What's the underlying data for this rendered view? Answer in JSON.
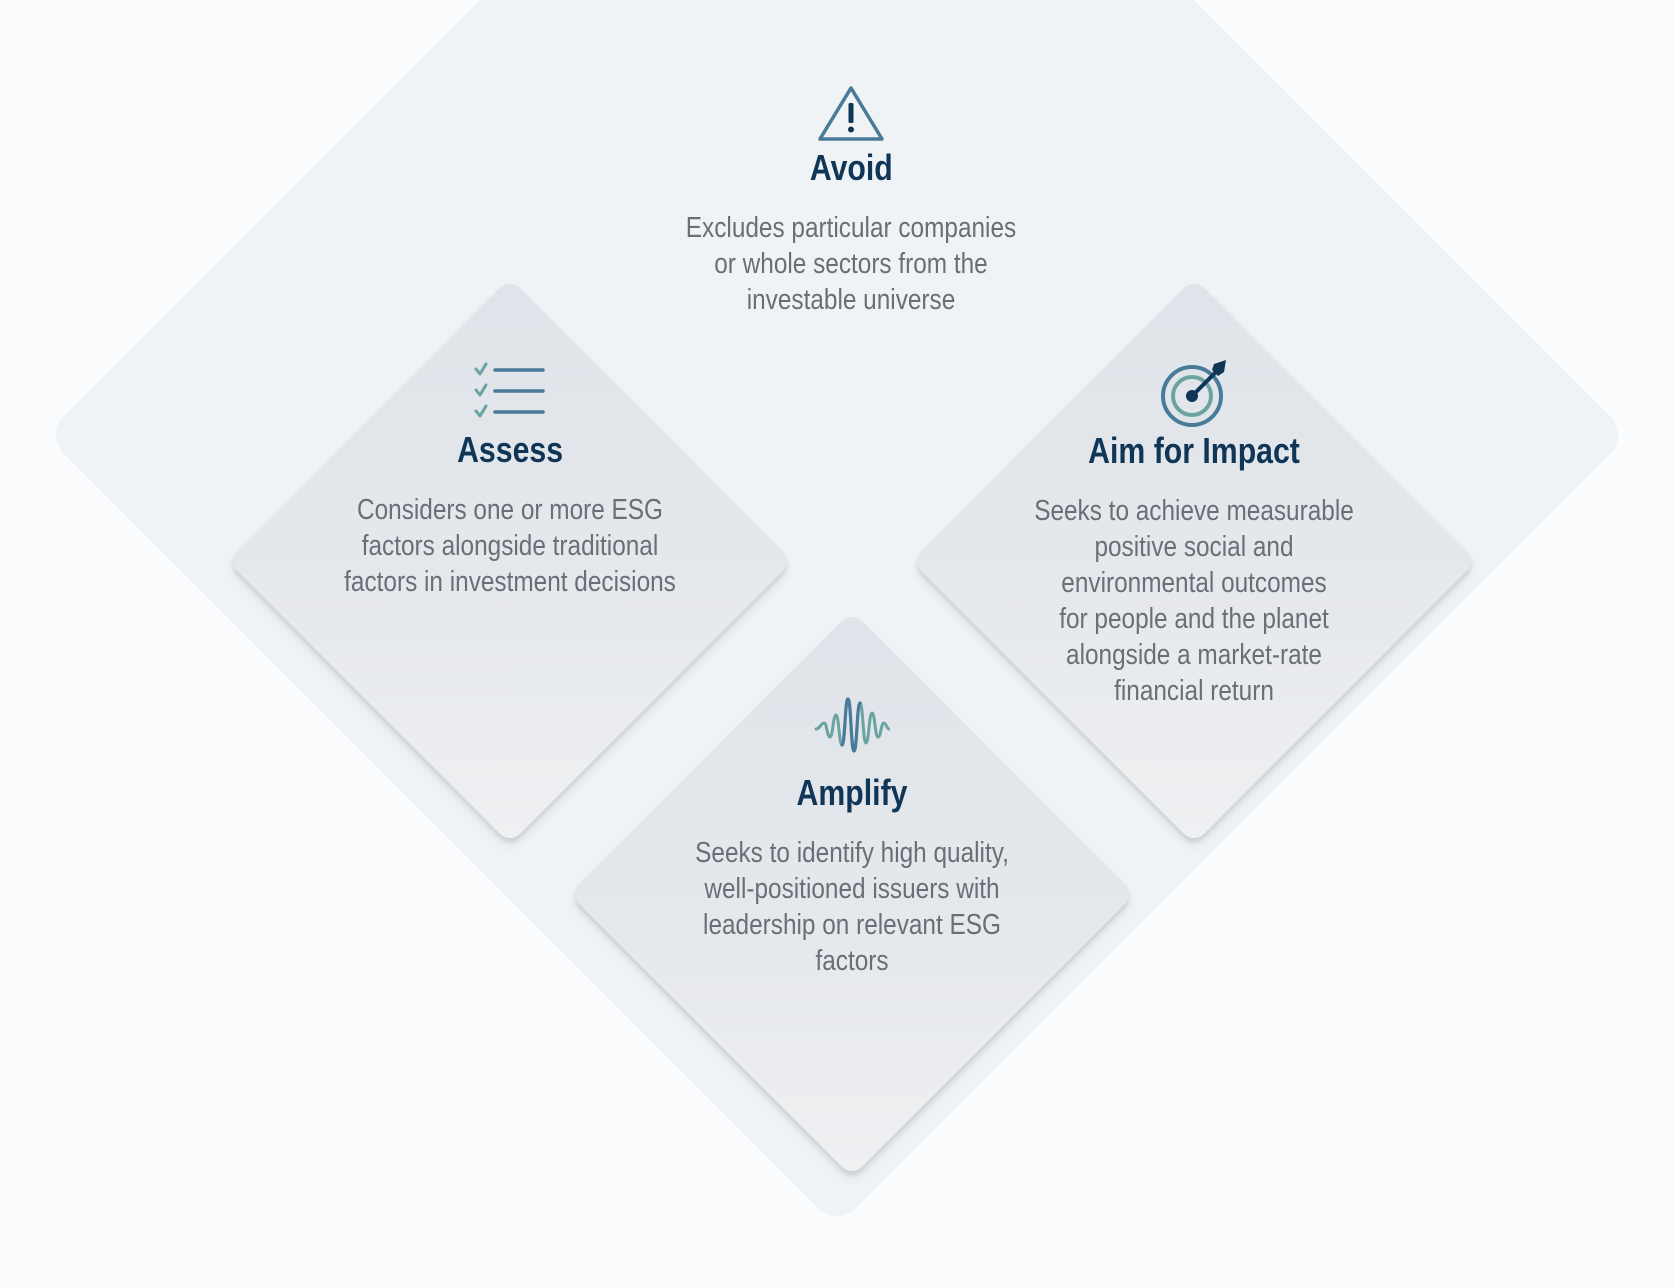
{
  "items": [
    {
      "id": "avoid",
      "icon": "warning-triangle-icon",
      "title": "Avoid",
      "description": "Excludes particular companies\nor whole sectors from the\ninvestable universe"
    },
    {
      "id": "assess",
      "icon": "checklist-icon",
      "title": "Assess",
      "description": "Considers one or more ESG\nfactors alongside traditional\nfactors in investment decisions"
    },
    {
      "id": "impact",
      "icon": "target-dart-icon",
      "title": "Aim for Impact",
      "description": "Seeks to achieve measurable\npositive social and\nenvironmental outcomes\nfor people and the planet\nalongside a market-rate\nfinancial return"
    },
    {
      "id": "amplify",
      "icon": "soundwave-icon",
      "title": "Amplify",
      "description": "Seeks to identify high quality,\nwell-positioned issuers with\nleadership on relevant ESG\nfactors"
    }
  ],
  "colors": {
    "title": "#0f3557",
    "text": "#6a6f76",
    "icon_blue": "#4a7a9a",
    "icon_teal": "#6aa3a0",
    "outer_diamond": "#f0f3f5",
    "inner_diamond": "#e3e7eb"
  }
}
